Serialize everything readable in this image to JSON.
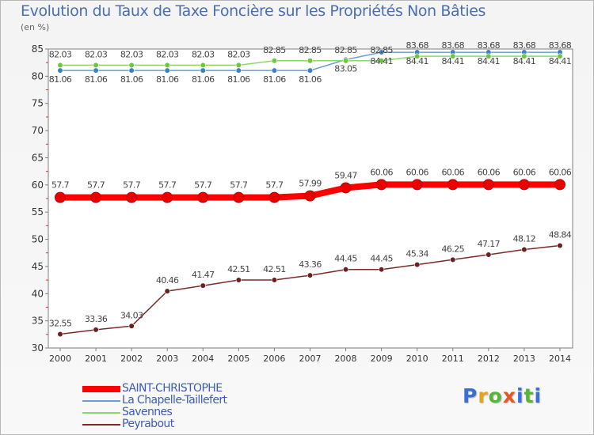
{
  "page": {
    "title": "Evolution du Taux de Taxe Foncière sur les Propriétés Non Bâties",
    "subtitle": "(en %)",
    "logo": {
      "letters": [
        "P",
        "r",
        "o",
        "x",
        "i",
        "t",
        "i"
      ]
    }
  },
  "chart_data": {
    "type": "line",
    "title": "Evolution du Taux de Taxe Foncière sur les Propriétés Non Bâties",
    "ylabel": "(en %)",
    "xlabel": "",
    "ylim": [
      30,
      85
    ],
    "yticks": [
      "30",
      "35",
      "40",
      "45",
      "50",
      "55",
      "60",
      "65",
      "70",
      "75",
      "80",
      "85"
    ],
    "categories": [
      "2000",
      "2001",
      "2002",
      "2003",
      "2004",
      "2005",
      "2006",
      "2007",
      "2008",
      "2009",
      "2010",
      "2011",
      "2012",
      "2013",
      "2014"
    ],
    "grid": false,
    "legend_position": "bottom-left",
    "series": [
      {
        "name": "SAINT-CHRISTOPHE",
        "color": "#ff0000",
        "marker_color": "#e80000",
        "emphasis": true,
        "values": [
          57.7,
          57.7,
          57.7,
          57.7,
          57.7,
          57.7,
          57.7,
          57.99,
          59.47,
          60.06,
          60.06,
          60.06,
          60.06,
          60.06,
          60.06
        ],
        "labels": [
          "57.7",
          "57.7",
          "57.7",
          "57.7",
          "57.7",
          "57.7",
          "57.7",
          "57.99",
          "59.47",
          "60.06",
          "60.06",
          "60.06",
          "60.06",
          "60.06",
          "60.06"
        ]
      },
      {
        "name": "La Chapelle-Taillefert",
        "color": "#6a9fd8",
        "marker_color": "#3f7fc4",
        "emphasis": false,
        "values": [
          81.06,
          81.06,
          81.06,
          81.06,
          81.06,
          81.06,
          81.06,
          81.06,
          83.05,
          84.41,
          84.41,
          84.41,
          84.41,
          84.41,
          84.41
        ],
        "labels": [
          "81.06",
          "81.06",
          "81.06",
          "81.06",
          "81.06",
          "81.06",
          "81.06",
          "81.06",
          "83.05",
          "84.41",
          "84.41",
          "84.41",
          "84.41",
          "84.41",
          "84.41"
        ]
      },
      {
        "name": "Savennes",
        "color": "#8fd66a",
        "marker_color": "#6cc63f",
        "emphasis": false,
        "values": [
          82.03,
          82.03,
          82.03,
          82.03,
          82.03,
          82.03,
          82.85,
          82.85,
          82.85,
          82.85,
          83.68,
          83.68,
          83.68,
          83.68,
          83.68
        ],
        "labels": [
          "82.03",
          "82.03",
          "82.03",
          "82.03",
          "82.03",
          "82.03",
          "82.85",
          "82.85",
          "82.85",
          "82.85",
          "83.68",
          "83.68",
          "83.68",
          "83.68",
          "83.68"
        ]
      },
      {
        "name": "Peyrabout",
        "color": "#7a2a2a",
        "marker_color": "#6b1f1f",
        "emphasis": false,
        "values": [
          32.55,
          33.36,
          34.03,
          40.46,
          41.47,
          42.51,
          42.51,
          43.36,
          44.45,
          44.45,
          45.34,
          46.25,
          47.17,
          48.12,
          48.84
        ],
        "labels": [
          "32.55",
          "33.36",
          "34.03",
          "40.46",
          "41.47",
          "42.51",
          "42.51",
          "43.36",
          "44.45",
          "44.45",
          "45.34",
          "46.25",
          "47.17",
          "48.12",
          "48.84"
        ]
      }
    ]
  }
}
